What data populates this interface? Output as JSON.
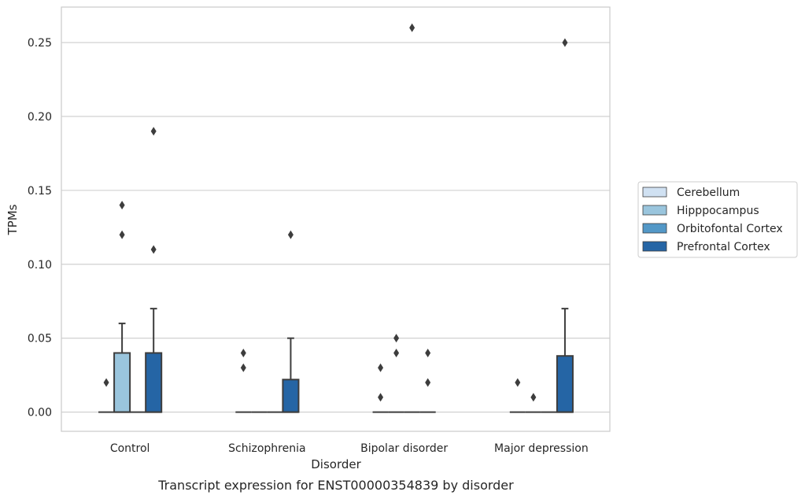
{
  "chart_data": {
    "type": "box",
    "caption": "Transcript expression for ENST00000354839 by disorder",
    "xlabel": "Disorder",
    "ylabel": "TPMs",
    "ylim": [
      -0.013,
      0.274
    ],
    "yticks": [
      0.0,
      0.05,
      0.1,
      0.15,
      0.2,
      0.25
    ],
    "ytick_labels": [
      "0.00",
      "0.05",
      "0.10",
      "0.15",
      "0.20",
      "0.25"
    ],
    "grid": true,
    "legend_position": "right",
    "categories": [
      "Control",
      "Schizophrenia",
      "Bipolar disorder",
      "Major depression"
    ],
    "series": [
      {
        "name": "Cerebellum",
        "color": "#d0e1f2",
        "boxes": [
          {
            "q1": 0,
            "median": 0,
            "q3": 0,
            "whisker_low": 0,
            "whisker_high": 0,
            "outliers": [
              0.02
            ]
          },
          {
            "q1": 0,
            "median": 0,
            "q3": 0,
            "whisker_low": 0,
            "whisker_high": 0,
            "outliers": [
              0.03,
              0.04
            ]
          },
          {
            "q1": 0,
            "median": 0,
            "q3": 0,
            "whisker_low": 0,
            "whisker_high": 0,
            "outliers": [
              0.01,
              0.03
            ]
          },
          {
            "q1": 0,
            "median": 0,
            "q3": 0,
            "whisker_low": 0,
            "whisker_high": 0,
            "outliers": [
              0.02
            ]
          }
        ]
      },
      {
        "name": "Hipppocampus",
        "color": "#9ac5dd",
        "boxes": [
          {
            "q1": 0,
            "median": 0,
            "q3": 0.04,
            "whisker_low": 0,
            "whisker_high": 0.06,
            "outliers": [
              0.12,
              0.14
            ]
          },
          {
            "q1": 0,
            "median": 0,
            "q3": 0,
            "whisker_low": 0,
            "whisker_high": 0,
            "outliers": []
          },
          {
            "q1": 0,
            "median": 0,
            "q3": 0,
            "whisker_low": 0,
            "whisker_high": 0,
            "outliers": [
              0.04,
              0.05
            ]
          },
          {
            "q1": 0,
            "median": 0,
            "q3": 0,
            "whisker_low": 0,
            "whisker_high": 0,
            "outliers": [
              0.01
            ]
          }
        ]
      },
      {
        "name": "Orbitofontal Cortex",
        "color": "#5398c7",
        "boxes": [
          {
            "q1": 0,
            "median": 0,
            "q3": 0,
            "whisker_low": 0,
            "whisker_high": 0,
            "outliers": []
          },
          {
            "q1": 0,
            "median": 0,
            "q3": 0,
            "whisker_low": 0,
            "whisker_high": 0,
            "outliers": []
          },
          {
            "q1": 0,
            "median": 0,
            "q3": 0,
            "whisker_low": 0,
            "whisker_high": 0,
            "outliers": [
              0.26
            ]
          },
          {
            "q1": 0,
            "median": 0,
            "q3": 0,
            "whisker_low": 0,
            "whisker_high": 0,
            "outliers": []
          }
        ]
      },
      {
        "name": "Prefrontal Cortex",
        "color": "#2565a5",
        "boxes": [
          {
            "q1": 0,
            "median": 0,
            "q3": 0.04,
            "whisker_low": 0,
            "whisker_high": 0.07,
            "outliers": [
              0.11,
              0.19
            ]
          },
          {
            "q1": 0,
            "median": 0,
            "q3": 0.022,
            "whisker_low": 0,
            "whisker_high": 0.05,
            "outliers": [
              0.12
            ]
          },
          {
            "q1": 0,
            "median": 0,
            "q3": 0,
            "whisker_low": 0,
            "whisker_high": 0,
            "outliers": [
              0.02,
              0.04
            ]
          },
          {
            "q1": 0,
            "median": 0,
            "q3": 0.038,
            "whisker_low": 0,
            "whisker_high": 0.07,
            "outliers": [
              0.25
            ]
          }
        ]
      }
    ]
  }
}
